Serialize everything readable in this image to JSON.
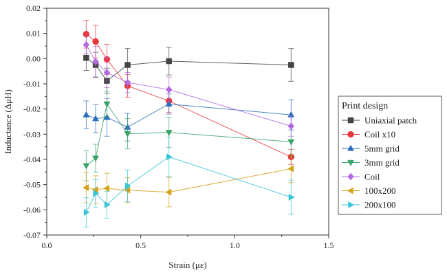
{
  "chart_data": {
    "type": "scatter",
    "title": "",
    "xlabel": "Strain (με)",
    "ylabel": "Inductance (ΔμH)",
    "xlim": [
      0,
      1.5
    ],
    "ylim": [
      -0.07,
      0.02
    ],
    "xticks": [
      "0.0",
      "0.5",
      "1.0",
      "1.5"
    ],
    "yticks": [
      "0.02",
      "0.01",
      "0.00",
      "-0.01",
      "-0.02",
      "-0.03",
      "-0.04",
      "-0.05",
      "-0.06",
      "-0.07"
    ],
    "ytick_values": [
      0.02,
      0.01,
      0.0,
      -0.01,
      -0.02,
      -0.03,
      -0.04,
      -0.05,
      -0.06,
      -0.07
    ],
    "xtick_values": [
      0.0,
      0.5,
      1.0,
      1.5
    ],
    "grid": false,
    "legend_title": "Print design",
    "legend_position": "right",
    "x": [
      0.21,
      0.26,
      0.32,
      0.43,
      0.65,
      1.3
    ],
    "series": [
      {
        "name": "Uniaxial patch",
        "color": "#444444",
        "marker": "square",
        "values": [
          0.0003,
          -0.0025,
          -0.0088,
          -0.0025,
          -0.001,
          -0.0025
        ],
        "errors": [
          0.005,
          0.005,
          0.005,
          0.0065,
          0.0055,
          0.0065
        ]
      },
      {
        "name": "Coil x10",
        "color": "#e8383d",
        "marker": "circle",
        "values": [
          0.0097,
          0.0068,
          -0.0003,
          -0.0108,
          -0.0168,
          -0.039
        ],
        "errors": [
          0.0055,
          0.0065,
          0.006,
          0.0045,
          0.0045,
          0.003
        ]
      },
      {
        "name": "5mm grid",
        "color": "#2a6ebb",
        "marker": "triangle-up",
        "values": [
          -0.0223,
          -0.0238,
          -0.0233,
          -0.0272,
          -0.018,
          -0.0223
        ],
        "errors": [
          0.0055,
          0.0055,
          0.0075,
          0.0055,
          0.004,
          0.006
        ]
      },
      {
        "name": "3mm grid",
        "color": "#3aa36a",
        "marker": "triangle-down",
        "values": [
          -0.0425,
          -0.0395,
          -0.018,
          -0.0298,
          -0.0293,
          -0.033
        ],
        "errors": [
          0.006,
          0.0055,
          0.005,
          0.006,
          0.006,
          0.006
        ]
      },
      {
        "name": "Coil",
        "color": "#b16ae0",
        "marker": "diamond",
        "values": [
          0.0055,
          -0.0012,
          -0.0055,
          -0.0095,
          -0.0123,
          -0.0268
        ],
        "errors": [
          0.0035,
          0.006,
          0.006,
          0.004,
          0.005,
          0.004
        ]
      },
      {
        "name": "100x200",
        "color": "#d4a017",
        "marker": "triangle-left",
        "values": [
          -0.0512,
          -0.052,
          -0.0515,
          -0.0522,
          -0.053,
          -0.0437
        ],
        "errors": [
          0.006,
          0.0055,
          0.006,
          0.005,
          0.0058,
          0.0055
        ]
      },
      {
        "name": "200x100",
        "color": "#36c6d8",
        "marker": "triangle-right",
        "values": [
          -0.061,
          -0.0535,
          -0.058,
          -0.0505,
          -0.039,
          -0.055
        ],
        "errors": [
          0.0058,
          0.0055,
          0.0053,
          0.0063,
          0.0078,
          0.0068
        ]
      }
    ]
  }
}
